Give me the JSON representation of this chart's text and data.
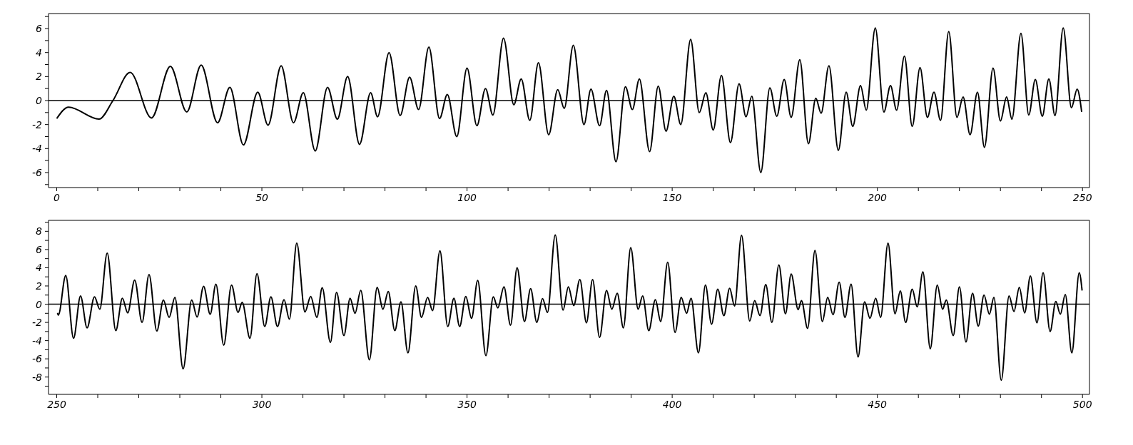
{
  "chart_data": [
    {
      "type": "line",
      "x": [
        0,
        2.9,
        10.3,
        13.7,
        17.9,
        23.1,
        27.7,
        31.7,
        35.2,
        39.2,
        42.2,
        45.5,
        49,
        51.5,
        54.7,
        57.7,
        60.1,
        63,
        66,
        68.4,
        70.9,
        73.8,
        76.5,
        78.2,
        81,
        83.7,
        86,
        88.2,
        90.7,
        93.3,
        95.2,
        97.5,
        100,
        102.4,
        104.5,
        106.3,
        108.9,
        111.4,
        113.2,
        115.3,
        117.4,
        119.9,
        122.1,
        123.7,
        125.9,
        128.5,
        130.2,
        132.3,
        134,
        136.3,
        138.6,
        140.3,
        142,
        144.5,
        146.6,
        148.5,
        150.4,
        152.1,
        154.5,
        156.6,
        158.2,
        160,
        162,
        164.2,
        166.3,
        168,
        169.4,
        171.6,
        173.8,
        175.5,
        177.3,
        179,
        181.1,
        183.2,
        185,
        186.3,
        188.2,
        190.5,
        192.4,
        194,
        195.9,
        197.3,
        199.5,
        201.6,
        203.2,
        204.7,
        206.6,
        208.5,
        210.4,
        212.2,
        213.8,
        215.4,
        217.4,
        219.4,
        220.9,
        222.6,
        224.4,
        226.1,
        228.2,
        230,
        231.5,
        232.8,
        235,
        236.9,
        238.5,
        240.2,
        241.8,
        243.3,
        245.3,
        247.3,
        248.7,
        249.8
      ],
      "series": [
        {
          "color": "#000000",
          "values": [
            -1.5,
            -0.55,
            -1.55,
            0,
            2.35,
            -1.45,
            2.85,
            -0.95,
            2.95,
            -1.85,
            1.1,
            -3.7,
            0.7,
            -2.05,
            2.9,
            -1.85,
            0.65,
            -4.2,
            1.1,
            -1.55,
            2,
            -3.65,
            0.65,
            -1.35,
            4,
            -1.25,
            1.95,
            -0.75,
            4.45,
            -1.5,
            0.5,
            -3,
            2.7,
            -2.1,
            1,
            -1.2,
            5.2,
            -0.35,
            1.8,
            -1.65,
            3.15,
            -2.85,
            0.9,
            -0.65,
            4.6,
            -2,
            0.95,
            -2.1,
            0.85,
            -5.1,
            1.15,
            -0.75,
            1.8,
            -4.25,
            1.2,
            -2.55,
            0.35,
            -2,
            5.1,
            -1,
            0.65,
            -2.45,
            2.1,
            -3.5,
            1.4,
            -1.35,
            0.35,
            -6,
            1.05,
            -1.3,
            1.75,
            -1.4,
            3.4,
            -3.6,
            0.2,
            -1.05,
            2.9,
            -4.15,
            0.7,
            -2.15,
            1.25,
            -0.8,
            6.05,
            -0.95,
            1.25,
            -0.8,
            3.7,
            -2.15,
            2.75,
            -1.4,
            0.7,
            -1.65,
            5.75,
            -1.4,
            0.3,
            -2.85,
            0.7,
            -3.9,
            2.7,
            -1.7,
            0.3,
            -1.55,
            5.6,
            -1.2,
            1.75,
            -1.3,
            1.8,
            -1.25,
            6.05,
            -0.6,
            0.95,
            -0.95
          ]
        }
      ],
      "xlim": [
        -2,
        251.7
      ],
      "xticks": [
        0,
        {
          "value": 10,
          "label": null
        },
        {
          "value": 20,
          "label": null
        },
        {
          "value": 30,
          "label": null
        },
        {
          "value": 40,
          "label": null
        },
        50,
        {
          "value": 60,
          "label": null
        },
        {
          "value": 70,
          "label": null
        },
        {
          "value": 80,
          "label": null
        },
        {
          "value": 90,
          "label": null
        },
        100,
        {
          "value": 110,
          "label": null
        },
        {
          "value": 120,
          "label": null
        },
        {
          "value": 130,
          "label": null
        },
        {
          "value": 140,
          "label": null
        },
        150,
        {
          "value": 160,
          "label": null
        },
        {
          "value": 170,
          "label": null
        },
        {
          "value": 180,
          "label": null
        },
        {
          "value": 190,
          "label": null
        },
        200,
        {
          "value": 210,
          "label": null
        },
        {
          "value": 220,
          "label": null
        },
        {
          "value": 230,
          "label": null
        },
        {
          "value": 240,
          "label": null
        },
        250
      ],
      "ylim": [
        -7.25,
        7.25
      ],
      "yticks": [
        {
          "value": -7,
          "label": null
        },
        -6,
        {
          "value": -5,
          "label": null
        },
        -4,
        {
          "value": -3,
          "label": null
        },
        -2,
        {
          "value": -1,
          "label": null
        },
        0,
        {
          "value": 1,
          "label": null
        },
        2,
        {
          "value": 3,
          "label": null
        },
        4,
        {
          "value": 5,
          "label": null
        },
        6,
        {
          "value": 7,
          "label": null
        }
      ],
      "ref_lines": [
        {
          "axis": "y",
          "value": 0,
          "color": "#000000"
        }
      ],
      "grid": false,
      "legend": false,
      "marker": "none",
      "line_style": "solid"
    },
    {
      "type": "line",
      "x": [
        250.2,
        250.4,
        252.2,
        254.1,
        255.8,
        257.4,
        259.2,
        260.5,
        262.3,
        264.4,
        266,
        267.3,
        269,
        270.8,
        272.5,
        274.4,
        276,
        277.4,
        278.8,
        280.8,
        282.9,
        284.2,
        285.8,
        287.4,
        288.8,
        290.7,
        292.6,
        294.2,
        295.2,
        297.1,
        298.8,
        300.7,
        302.2,
        303.8,
        305.4,
        306.7,
        308.5,
        310.5,
        311.9,
        313.4,
        314.7,
        316.7,
        318.2,
        320,
        321.5,
        322.7,
        324.1,
        326.2,
        328.1,
        329.5,
        330.8,
        332.4,
        333.9,
        335.6,
        337.5,
        338.9,
        340.4,
        341.6,
        343.4,
        345.3,
        346.8,
        348.2,
        349.7,
        351.1,
        352.6,
        354.6,
        356.4,
        357.5,
        359,
        360.6,
        362.2,
        364,
        365.5,
        367,
        368.4,
        369.6,
        371.5,
        373.4,
        374.7,
        376,
        377.5,
        379.1,
        380.6,
        382.3,
        384,
        385.3,
        386.6,
        388.1,
        389.9,
        391.7,
        392.8,
        394.3,
        395.9,
        397.2,
        398.9,
        400.7,
        402.2,
        403.5,
        404.6,
        406.4,
        408.1,
        409.6,
        411.1,
        412.6,
        414,
        415.2,
        416.9,
        418.9,
        420.1,
        421.4,
        422.8,
        424.3,
        426,
        427.6,
        429,
        430.7,
        431.5,
        433,
        434.8,
        436.6,
        437.9,
        439.2,
        440.7,
        442.1,
        443.6,
        445.3,
        446.9,
        448.2,
        449.6,
        450.8,
        452.6,
        454.3,
        455.6,
        456.9,
        458.5,
        459.7,
        461.1,
        462.9,
        464.6,
        465.9,
        466.8,
        468.5,
        470,
        471.6,
        473.2,
        474.6,
        476,
        477.3,
        478.4,
        480.2,
        482.1,
        483.3,
        484.6,
        485.9,
        487.3,
        488.9,
        490.4,
        492.1,
        493.5,
        494.6,
        495.8,
        497.4,
        499.2,
        499.9
      ],
      "series": [
        {
          "color": "#000000",
          "values": [
            -0.95,
            -1.2,
            3.15,
            -3.75,
            0.9,
            -2.6,
            0.8,
            -0.55,
            5.6,
            -2.9,
            0.65,
            -0.95,
            2.65,
            -2,
            3.25,
            -2.95,
            0.45,
            -1.45,
            0.75,
            -7.1,
            0.45,
            -1.4,
            1.95,
            -1.1,
            2.2,
            -4.5,
            2.1,
            -0.9,
            0.2,
            -3.75,
            3.35,
            -2.45,
            0.8,
            -2.45,
            0.5,
            -1.65,
            6.7,
            -0.85,
            0.85,
            -1.45,
            1.8,
            -4.2,
            1.3,
            -3.45,
            0.65,
            -1,
            1.5,
            -6.1,
            1.85,
            -0.55,
            1.4,
            -2.9,
            0.25,
            -5.35,
            2,
            -1.45,
            0.75,
            -0.7,
            5.85,
            -2.45,
            0.65,
            -2.45,
            0.85,
            -1.55,
            2.6,
            -5.65,
            0.8,
            -0.4,
            1.9,
            -2.3,
            4,
            -1.9,
            1.7,
            -2,
            0.6,
            -0.9,
            7.6,
            -0.65,
            1.9,
            -0.15,
            2.7,
            -2.05,
            2.7,
            -3.65,
            1.5,
            -0.55,
            1.2,
            -2.6,
            6.2,
            -0.55,
            0.9,
            -2.9,
            0.5,
            -1.9,
            4.6,
            -3.1,
            0.75,
            -1,
            0.65,
            -5.35,
            2.1,
            -2.2,
            1.65,
            -1.25,
            1.75,
            -0.2,
            7.55,
            -1.85,
            0.4,
            -1.25,
            2.15,
            -2,
            4.3,
            -1.05,
            3.3,
            -0.6,
            0.4,
            -2.65,
            5.9,
            -1.9,
            0.75,
            -1.15,
            2.4,
            -1.45,
            2.2,
            -5.8,
            0.25,
            -1.55,
            0.65,
            -1.45,
            6.7,
            -1.05,
            1.45,
            -2,
            1.65,
            -0.3,
            3.55,
            -4.9,
            2.1,
            -0.55,
            0.45,
            -3.45,
            1.9,
            -4.15,
            1.2,
            -2.4,
            1,
            -1.1,
            0.75,
            -8.35,
            0.9,
            -0.8,
            1.85,
            -0.95,
            3.1,
            -2.05,
            3.45,
            -3,
            0.3,
            -1.1,
            1.05,
            -5.35,
            3.45,
            1.5
          ]
        }
      ],
      "xlim": [
        248,
        501.7
      ],
      "xticks": [
        250,
        {
          "value": 260,
          "label": null
        },
        {
          "value": 270,
          "label": null
        },
        {
          "value": 280,
          "label": null
        },
        {
          "value": 290,
          "label": null
        },
        300,
        {
          "value": 310,
          "label": null
        },
        {
          "value": 320,
          "label": null
        },
        {
          "value": 330,
          "label": null
        },
        {
          "value": 340,
          "label": null
        },
        350,
        {
          "value": 360,
          "label": null
        },
        {
          "value": 370,
          "label": null
        },
        {
          "value": 380,
          "label": null
        },
        {
          "value": 390,
          "label": null
        },
        400,
        {
          "value": 410,
          "label": null
        },
        {
          "value": 420,
          "label": null
        },
        {
          "value": 430,
          "label": null
        },
        {
          "value": 440,
          "label": null
        },
        450,
        {
          "value": 460,
          "label": null
        },
        {
          "value": 470,
          "label": null
        },
        {
          "value": 480,
          "label": null
        },
        {
          "value": 490,
          "label": null
        },
        500
      ],
      "ylim": [
        -9.9,
        9.2
      ],
      "yticks": [
        {
          "value": -9,
          "label": null
        },
        -8,
        {
          "value": -7,
          "label": null
        },
        -6,
        {
          "value": -5,
          "label": null
        },
        -4,
        {
          "value": -3,
          "label": null
        },
        -2,
        {
          "value": -1,
          "label": null
        },
        0,
        {
          "value": 1,
          "label": null
        },
        2,
        {
          "value": 3,
          "label": null
        },
        4,
        {
          "value": 5,
          "label": null
        },
        6,
        {
          "value": 7,
          "label": null
        },
        8,
        {
          "value": 9,
          "label": null
        }
      ],
      "ref_lines": [
        {
          "axis": "y",
          "value": 0,
          "color": "#000000"
        }
      ],
      "grid": false,
      "legend": false,
      "marker": "none",
      "line_style": "solid"
    }
  ]
}
